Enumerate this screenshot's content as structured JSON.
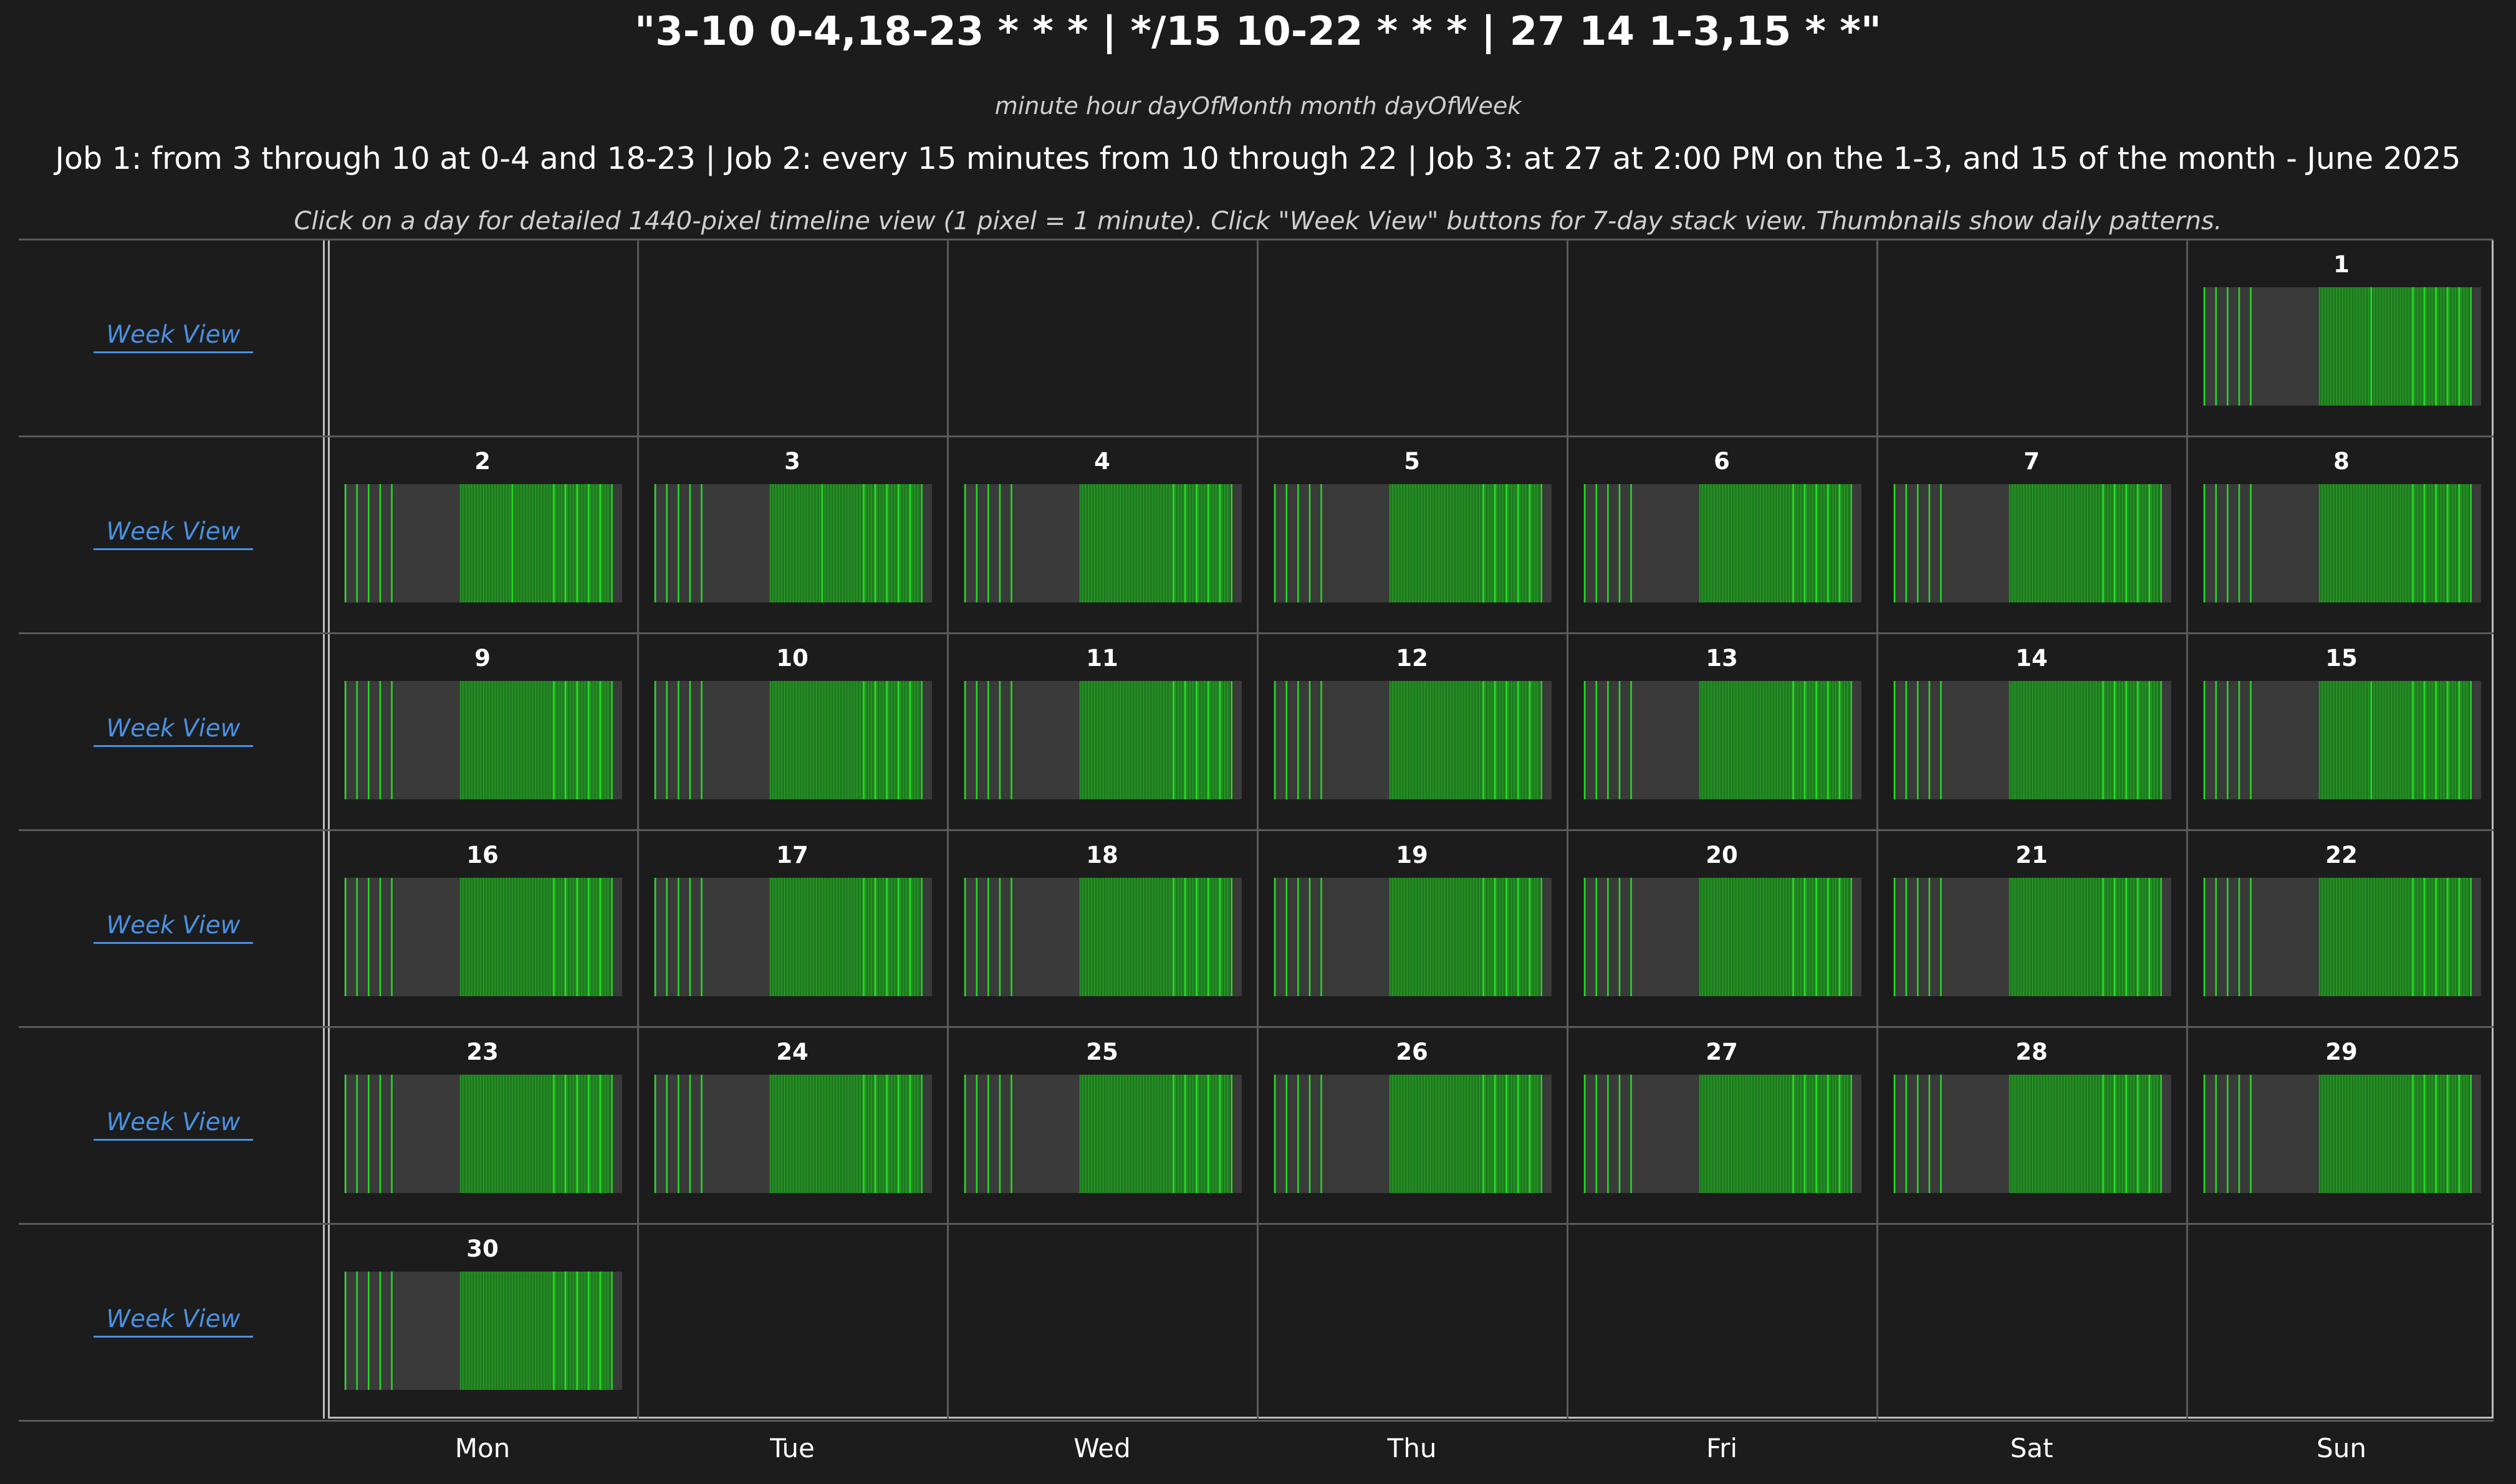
{
  "header": {
    "title": "\"3-10 0-4,18-23 * * * | */15 10-22 * * * | 27 14 1-3,15 * *\"",
    "field_names": "minute hour dayOfMonth month dayOfWeek",
    "description": "Job 1: from 3 through 10 at 0-4 and 18-23 | Job 2: every 15 minutes from 10 through 22 | Job 3: at 27 at 2:00 PM on the 1-3, and 15 of the month - June 2025",
    "instructions": "Click on a day for detailed 1440-pixel timeline view (1 pixel = 1 minute). Click \"Week View\" buttons for 7-day stack view. Thumbnails show daily patterns."
  },
  "week_link_label": "Week View",
  "weekdays": [
    "Mon",
    "Tue",
    "Wed",
    "Thu",
    "Fri",
    "Sat",
    "Sun"
  ],
  "weeks": [
    [
      null,
      null,
      null,
      null,
      null,
      null,
      1
    ],
    [
      2,
      3,
      4,
      5,
      6,
      7,
      8
    ],
    [
      9,
      10,
      11,
      12,
      13,
      14,
      15
    ],
    [
      16,
      17,
      18,
      19,
      20,
      21,
      22
    ],
    [
      23,
      24,
      25,
      26,
      27,
      28,
      29
    ],
    [
      30,
      null,
      null,
      null,
      null,
      null,
      null
    ]
  ],
  "schedule": {
    "job1": {
      "minutes": [
        3,
        4,
        5,
        6,
        7,
        8,
        9,
        10
      ],
      "hours": [
        0,
        1,
        2,
        3,
        4,
        18,
        19,
        20,
        21,
        22,
        23
      ]
    },
    "job2": {
      "minutes": [
        0,
        15,
        30,
        45
      ],
      "hours": [
        10,
        11,
        12,
        13,
        14,
        15,
        16,
        17,
        18,
        19,
        20,
        21,
        22
      ]
    },
    "job3": {
      "minute": 27,
      "hour": 14,
      "days_of_month": [
        1,
        2,
        3,
        15
      ]
    }
  },
  "colors": {
    "background": "#1c1c1c",
    "thumb_background": "#3a3a3a",
    "active_range": "#1f7a1f",
    "fire_line": "#22dd22",
    "link": "#4a90e2"
  }
}
